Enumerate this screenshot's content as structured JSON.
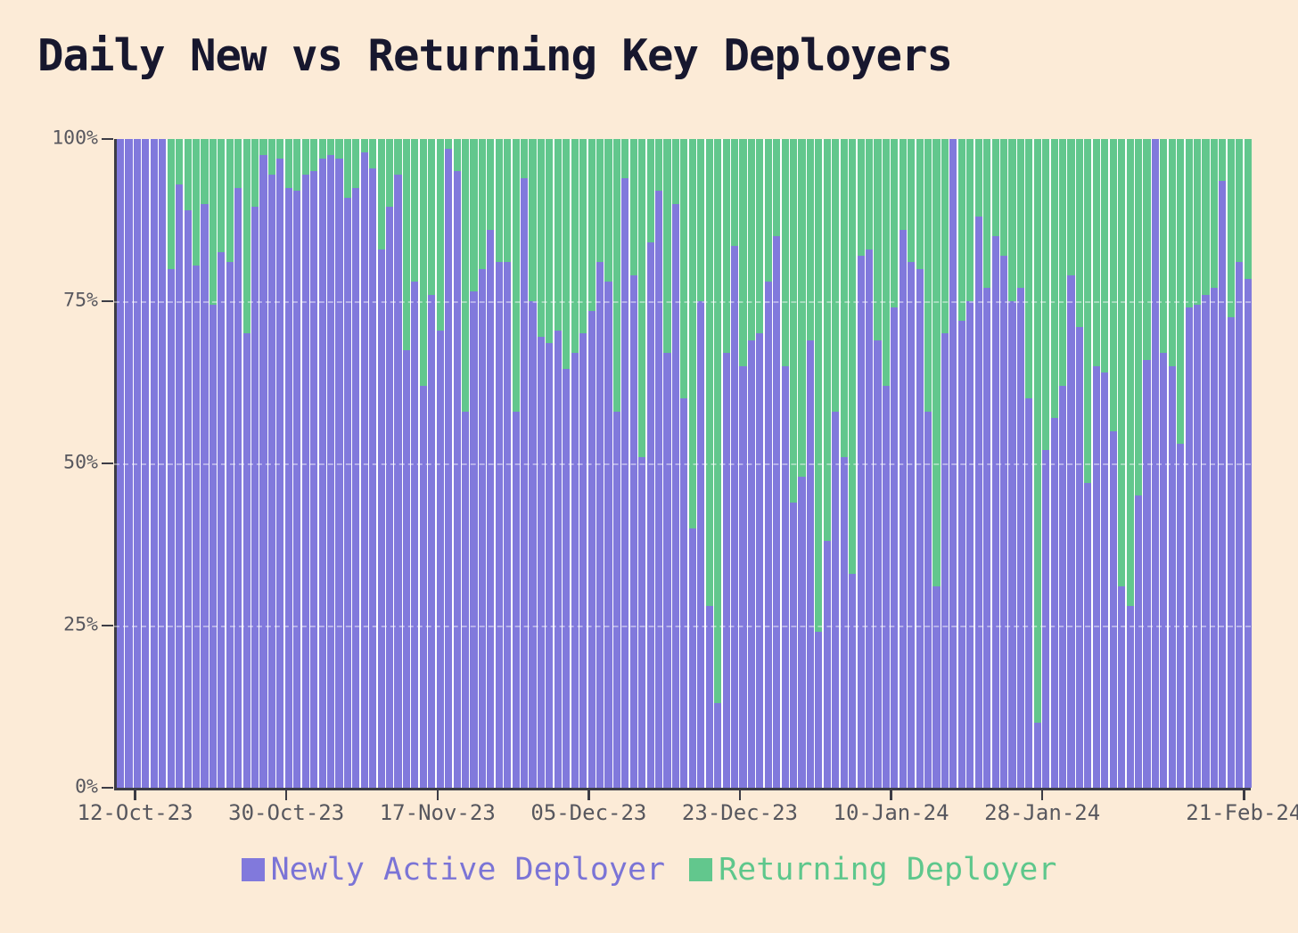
{
  "title": "Daily New vs Returning Key Deployers",
  "colors": {
    "background": "#fcebd7",
    "newly_active": "#8179dc",
    "returning": "#62c78d",
    "title_text": "#17172e",
    "axis_text": "#57575e",
    "axis_line": "#3c3c45"
  },
  "legend": {
    "items": [
      {
        "label": "Newly Active Deployer",
        "color": "#8179dc",
        "text_color": "#7b74d6"
      },
      {
        "label": "Returning Deployer",
        "color": "#62c78d",
        "text_color": "#5ec78c"
      }
    ]
  },
  "y_axis": {
    "ticks": [
      {
        "pct": 0,
        "label": "0%"
      },
      {
        "pct": 25,
        "label": "25%"
      },
      {
        "pct": 50,
        "label": "50%"
      },
      {
        "pct": 75,
        "label": "75%"
      },
      {
        "pct": 100,
        "label": "100%"
      }
    ]
  },
  "x_axis": {
    "ticks": [
      {
        "index": 2,
        "label": "12-Oct-23"
      },
      {
        "index": 20,
        "label": "30-Oct-23"
      },
      {
        "index": 38,
        "label": "17-Nov-23"
      },
      {
        "index": 56,
        "label": "05-Dec-23"
      },
      {
        "index": 74,
        "label": "23-Dec-23"
      },
      {
        "index": 92,
        "label": "10-Jan-24"
      },
      {
        "index": 110,
        "label": "28-Jan-24"
      },
      {
        "index": 134,
        "label": "21-Feb-24"
      }
    ]
  },
  "chart_data": {
    "type": "bar",
    "stacked": true,
    "normalized_percent": true,
    "ylim": [
      0,
      100
    ],
    "title": "Daily New vs Returning Key Deployers",
    "xlabel": "",
    "ylabel": "",
    "legend_position": "bottom-center",
    "grid": "horizontal-dashed",
    "x": [
      "10-Oct-23",
      "11-Oct-23",
      "12-Oct-23",
      "13-Oct-23",
      "14-Oct-23",
      "15-Oct-23",
      "16-Oct-23",
      "17-Oct-23",
      "18-Oct-23",
      "19-Oct-23",
      "20-Oct-23",
      "21-Oct-23",
      "22-Oct-23",
      "23-Oct-23",
      "24-Oct-23",
      "25-Oct-23",
      "26-Oct-23",
      "27-Oct-23",
      "28-Oct-23",
      "29-Oct-23",
      "30-Oct-23",
      "31-Oct-23",
      "01-Nov-23",
      "02-Nov-23",
      "03-Nov-23",
      "04-Nov-23",
      "05-Nov-23",
      "06-Nov-23",
      "07-Nov-23",
      "08-Nov-23",
      "09-Nov-23",
      "10-Nov-23",
      "11-Nov-23",
      "12-Nov-23",
      "13-Nov-23",
      "14-Nov-23",
      "15-Nov-23",
      "16-Nov-23",
      "17-Nov-23",
      "18-Nov-23",
      "19-Nov-23",
      "20-Nov-23",
      "21-Nov-23",
      "22-Nov-23",
      "23-Nov-23",
      "24-Nov-23",
      "25-Nov-23",
      "26-Nov-23",
      "27-Nov-23",
      "28-Nov-23",
      "29-Nov-23",
      "30-Nov-23",
      "01-Dec-23",
      "02-Dec-23",
      "03-Dec-23",
      "04-Dec-23",
      "05-Dec-23",
      "06-Dec-23",
      "07-Dec-23",
      "08-Dec-23",
      "09-Dec-23",
      "10-Dec-23",
      "11-Dec-23",
      "12-Dec-23",
      "13-Dec-23",
      "14-Dec-23",
      "15-Dec-23",
      "16-Dec-23",
      "17-Dec-23",
      "18-Dec-23",
      "19-Dec-23",
      "20-Dec-23",
      "21-Dec-23",
      "22-Dec-23",
      "23-Dec-23",
      "24-Dec-23",
      "25-Dec-23",
      "26-Dec-23",
      "27-Dec-23",
      "28-Dec-23",
      "29-Dec-23",
      "30-Dec-23",
      "31-Dec-23",
      "01-Jan-24",
      "02-Jan-24",
      "03-Jan-24",
      "04-Jan-24",
      "05-Jan-24",
      "06-Jan-24",
      "07-Jan-24",
      "08-Jan-24",
      "09-Jan-24",
      "10-Jan-24",
      "11-Jan-24",
      "12-Jan-24",
      "13-Jan-24",
      "14-Jan-24",
      "15-Jan-24",
      "16-Jan-24",
      "17-Jan-24",
      "18-Jan-24",
      "19-Jan-24",
      "20-Jan-24",
      "21-Jan-24",
      "22-Jan-24",
      "23-Jan-24",
      "24-Jan-24",
      "25-Jan-24",
      "26-Jan-24",
      "27-Jan-24",
      "28-Jan-24",
      "29-Jan-24",
      "30-Jan-24",
      "31-Jan-24",
      "01-Feb-24",
      "02-Feb-24",
      "03-Feb-24",
      "04-Feb-24",
      "05-Feb-24",
      "06-Feb-24",
      "07-Feb-24",
      "08-Feb-24",
      "09-Feb-24",
      "10-Feb-24",
      "11-Feb-24",
      "12-Feb-24",
      "13-Feb-24",
      "14-Feb-24",
      "15-Feb-24",
      "16-Feb-24",
      "17-Feb-24",
      "18-Feb-24",
      "19-Feb-24",
      "20-Feb-24",
      "21-Feb-24"
    ],
    "series": [
      {
        "name": "Newly Active Deployer",
        "color": "#8179dc",
        "values": [
          100,
          100,
          100,
          100,
          100,
          100,
          80,
          93,
          89,
          80.5,
          90,
          74.5,
          82.5,
          81,
          92.5,
          70,
          89.5,
          97.5,
          94.5,
          97,
          92.5,
          92,
          94.5,
          95,
          97,
          97.5,
          97,
          91,
          92.5,
          98,
          95.5,
          83,
          89.5,
          94.5,
          67.5,
          78,
          62,
          76,
          70.5,
          98.5,
          95,
          58,
          76.5,
          80,
          86,
          81,
          81,
          58,
          94,
          75,
          69.5,
          68.5,
          70.5,
          64.5,
          67,
          70,
          73.5,
          81,
          78,
          58,
          94,
          79,
          51,
          84,
          92,
          67,
          90,
          60,
          40,
          75,
          28,
          13,
          67,
          83.5,
          65,
          69,
          70,
          78,
          85,
          65,
          44,
          48,
          69,
          24,
          38,
          58,
          51,
          33,
          82,
          83,
          69,
          62,
          74,
          86,
          81,
          80,
          58,
          31,
          70,
          100,
          72,
          75,
          88,
          77,
          85,
          82,
          75,
          77,
          60,
          10,
          52,
          57,
          62,
          79,
          71,
          47,
          65,
          64,
          55,
          31,
          28,
          45,
          66,
          100,
          67,
          65,
          53,
          74,
          74.5,
          76,
          77,
          93.5,
          72.5,
          81,
          78.5
        ]
      },
      {
        "name": "Returning Deployer",
        "color": "#62c78d",
        "values": [
          0,
          0,
          0,
          0,
          0,
          0,
          20,
          7,
          11,
          19.5,
          10,
          25.5,
          17.5,
          19,
          7.5,
          30,
          10.5,
          2.5,
          5.5,
          3,
          7.5,
          8,
          5.5,
          5,
          3,
          2.5,
          3,
          9,
          7.5,
          2,
          4.5,
          17,
          10.5,
          5.5,
          32.5,
          22,
          38,
          24,
          29.5,
          1.5,
          5,
          42,
          23.5,
          20,
          14,
          19,
          19,
          42,
          6,
          25,
          30.5,
          31.5,
          29.5,
          35.5,
          33,
          30,
          26.5,
          19,
          22,
          42,
          6,
          21,
          49,
          16,
          8,
          33,
          10,
          40,
          60,
          25,
          72,
          87,
          33,
          16.5,
          35,
          31,
          30,
          22,
          15,
          35,
          56,
          52,
          31,
          76,
          62,
          42,
          49,
          67,
          18,
          17,
          31,
          38,
          26,
          14,
          19,
          20,
          42,
          69,
          30,
          0,
          28,
          25,
          12,
          23,
          15,
          18,
          25,
          23,
          40,
          90,
          48,
          43,
          38,
          21,
          29,
          53,
          35,
          36,
          45,
          69,
          72,
          55,
          34,
          0,
          33,
          35,
          47,
          26,
          25.5,
          24,
          23,
          6.5,
          27.5,
          19,
          21.5
        ]
      }
    ]
  }
}
